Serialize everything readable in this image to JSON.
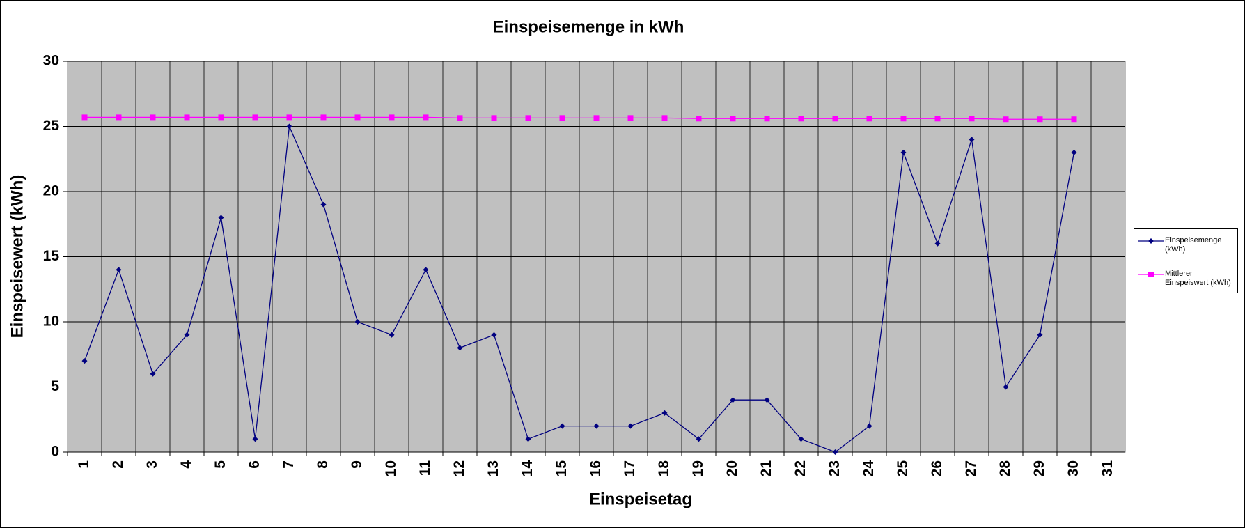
{
  "chart_data": {
    "type": "line",
    "title": "Einspeisemenge in kWh",
    "x_label": "Einspeisetag",
    "y_label": "Einspeisewert  (kWh)",
    "categories": [
      "1",
      "2",
      "3",
      "4",
      "5",
      "6",
      "7",
      "8",
      "9",
      "10",
      "11",
      "12",
      "13",
      "14",
      "15",
      "16",
      "17",
      "18",
      "19",
      "20",
      "21",
      "22",
      "23",
      "24",
      "25",
      "26",
      "27",
      "28",
      "29",
      "30",
      "31"
    ],
    "series": [
      {
        "name": "Einspeisemenge (kWh)",
        "color": "#000080",
        "marker": "diamond",
        "values": [
          7,
          14,
          6,
          9,
          18,
          1,
          25,
          19,
          10,
          9,
          14,
          8,
          9,
          1,
          2,
          2,
          2,
          3,
          1,
          4,
          4,
          1,
          0,
          2,
          23,
          16,
          24,
          5,
          9,
          23,
          null
        ]
      },
      {
        "name": "Mittlerer Einspeiswert (kWh)",
        "color": "#ff00ff",
        "marker": "square",
        "values": [
          25.7,
          25.7,
          25.7,
          25.7,
          25.7,
          25.7,
          25.7,
          25.7,
          25.7,
          25.7,
          25.7,
          25.65,
          25.65,
          25.65,
          25.65,
          25.65,
          25.65,
          25.65,
          25.6,
          25.6,
          25.6,
          25.6,
          25.6,
          25.6,
          25.6,
          25.6,
          25.6,
          25.55,
          25.55,
          25.55,
          null
        ]
      }
    ],
    "ylim": [
      0,
      30
    ],
    "yticks": [
      0,
      5,
      10,
      15,
      20,
      25,
      30
    ],
    "grid": true,
    "legend": "right"
  }
}
